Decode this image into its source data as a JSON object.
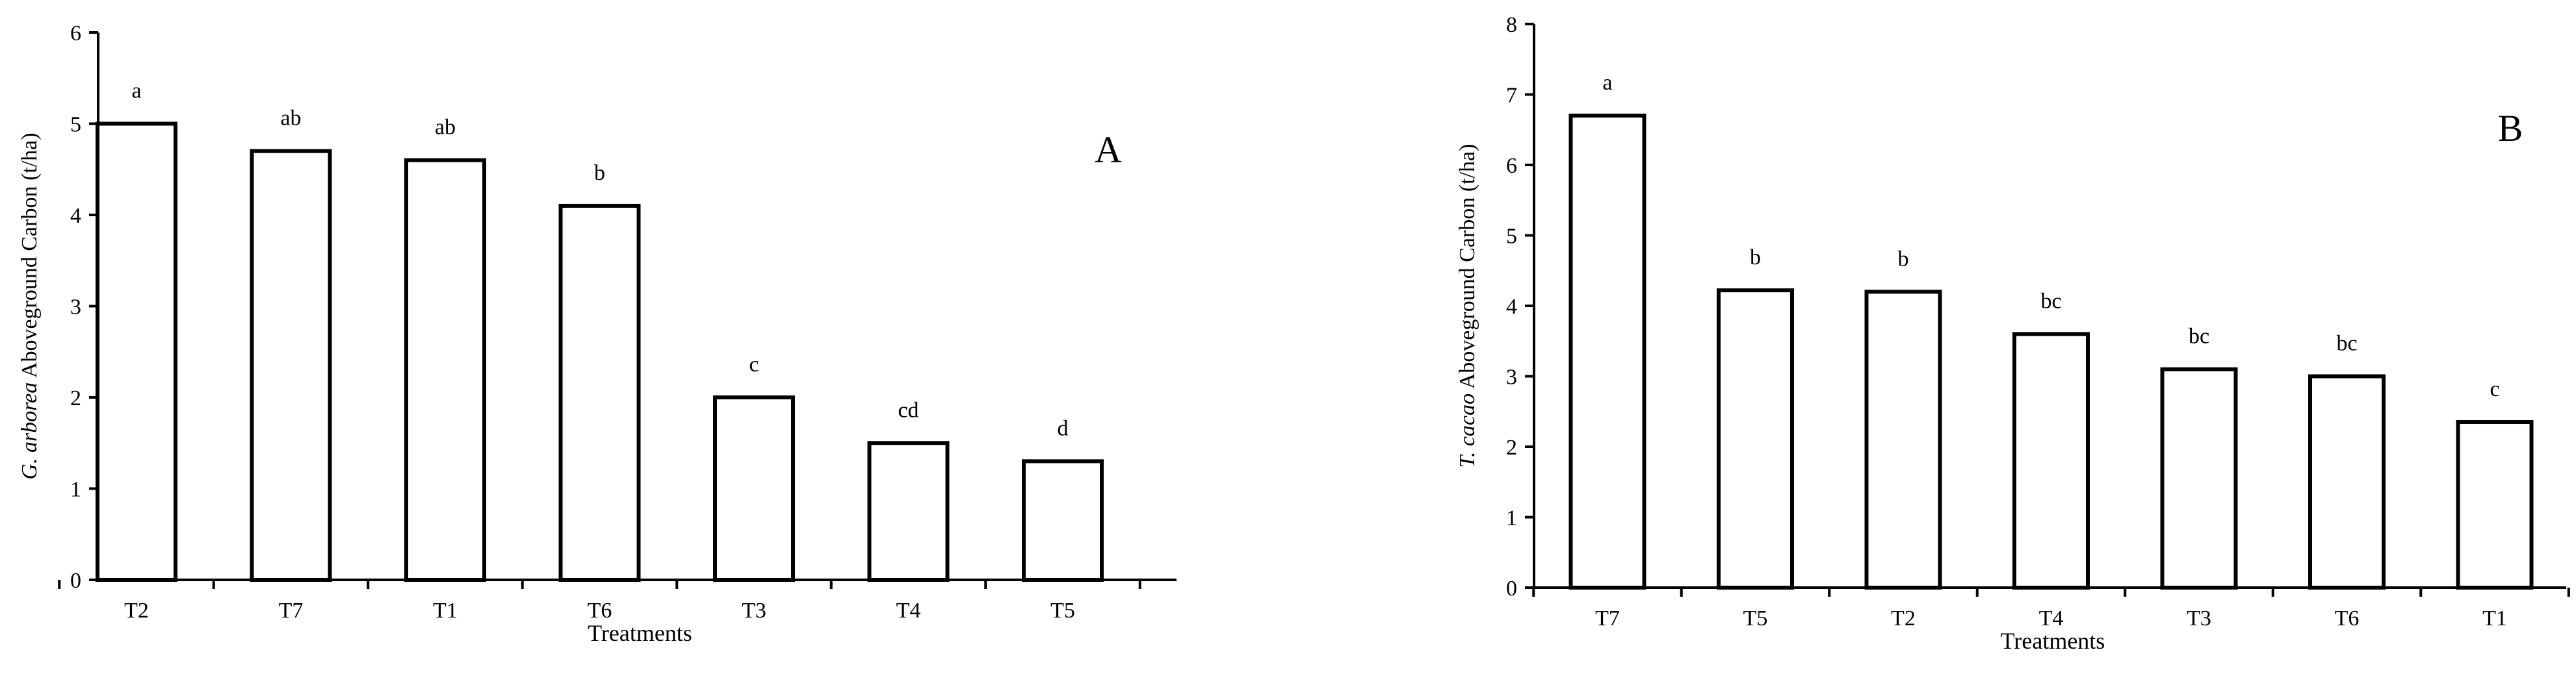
{
  "chart_data": [
    {
      "type": "bar",
      "panel_label": "A",
      "ylabel_italic": "G. arborea",
      "ylabel_rest": " Aboveground Carbon (t/ha)",
      "xlabel": "Treatments",
      "ylim": [
        0,
        6
      ],
      "yticks": [
        0,
        1,
        2,
        3,
        4,
        5,
        6
      ],
      "categories": [
        "T2",
        "T7",
        "T1",
        "T6",
        "T3",
        "T4",
        "T5"
      ],
      "values": [
        5.0,
        4.7,
        4.6,
        4.1,
        2.0,
        1.5,
        1.3
      ],
      "significance": [
        "a",
        "ab",
        "ab",
        "b",
        "c",
        "cd",
        "d"
      ]
    },
    {
      "type": "bar",
      "panel_label": "B",
      "ylabel_italic": "T. cacao",
      "ylabel_rest": " Aboveground Carbon (t/ha)",
      "xlabel": "Treatments",
      "ylim": [
        0,
        8
      ],
      "yticks": [
        0,
        1,
        2,
        3,
        4,
        5,
        6,
        7,
        8
      ],
      "categories": [
        "T7",
        "T5",
        "T2",
        "T4",
        "T3",
        "T6",
        "T1"
      ],
      "values": [
        6.7,
        4.22,
        4.2,
        3.6,
        3.1,
        3.0,
        2.35
      ],
      "significance": [
        "a",
        "b",
        "b",
        "bc",
        "bc",
        "bc",
        "c"
      ]
    }
  ]
}
